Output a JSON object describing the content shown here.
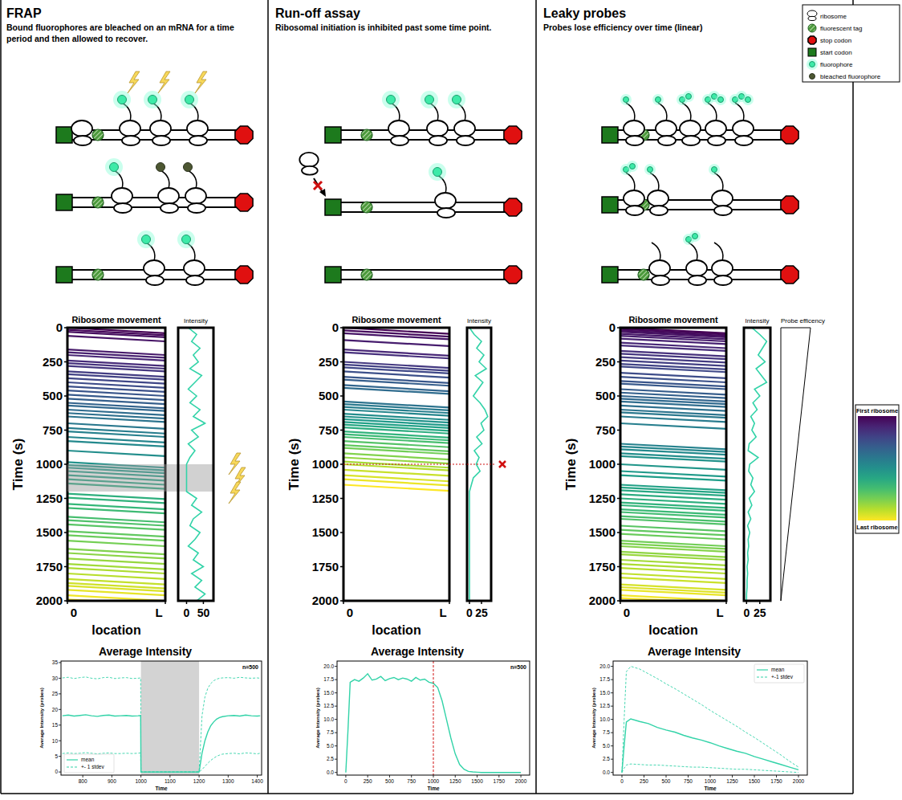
{
  "panels": [
    {
      "title": "FRAP",
      "subtitle": "Bound fluorophores are bleached on an mRNA for a time period and then allowed to recover."
    },
    {
      "title": "Run-off assay",
      "subtitle": "Ribosomal initiation is inhibited past some time point."
    },
    {
      "title": "Leaky probes",
      "subtitle": "Probes lose efficiency over time (linear)"
    }
  ],
  "legend": {
    "items": [
      "ribosome",
      "fluorescent tag",
      "stop codon",
      "start codon",
      "fluorophore",
      "bleached fluorophore"
    ]
  },
  "colorbar": {
    "top": "First ribosome",
    "bottom": "Last ribosome"
  },
  "chart_data": [
    {
      "type": "kymograph",
      "title": "Ribosome movement",
      "xlabel": "location",
      "ylabel": "Time (s)",
      "xlim": [
        0,
        1
      ],
      "xticks": [
        0,
        {
          "value": 1,
          "label": "L"
        }
      ],
      "ylim": [
        0,
        2000
      ],
      "yticks": [
        0,
        250,
        500,
        750,
        1000,
        1250,
        1500,
        1750,
        2000
      ],
      "starts": [
        0,
        15,
        30,
        60,
        160,
        180,
        200,
        240,
        260,
        280,
        320,
        340,
        370,
        400,
        430,
        460,
        490,
        520,
        550,
        570,
        600,
        625,
        650,
        700,
        735,
        760,
        800,
        830,
        900,
        985,
        1005,
        1025,
        1050,
        1080,
        1110,
        1140,
        1215,
        1245,
        1290,
        1320,
        1385,
        1410,
        1440,
        1490,
        1520,
        1560,
        1620,
        1650,
        1690,
        1730,
        1760,
        1800,
        1840,
        1870,
        1890,
        1920,
        1960,
        1990
      ],
      "ends": [
        40,
        55,
        70,
        100,
        200,
        220,
        240,
        280,
        300,
        320,
        360,
        380,
        410,
        440,
        470,
        500,
        530,
        560,
        590,
        610,
        640,
        665,
        690,
        740,
        775,
        800,
        840,
        870,
        940,
        1025,
        1045,
        1065,
        1090,
        1120,
        1150,
        1180,
        1255,
        1285,
        1330,
        1360,
        1425,
        1450,
        1480,
        1530,
        1560,
        1600,
        1660,
        1690,
        1730,
        1770,
        1800,
        1840,
        1880,
        1910,
        1930,
        1960,
        2000,
        2030
      ],
      "bleach": [
        1000,
        1200
      ]
    },
    {
      "type": "line",
      "title": "Intensity",
      "xlim": [
        -25,
        80
      ],
      "xticks": [
        0,
        50
      ],
      "ylim": [
        0,
        2000
      ],
      "tick_labels": "x",
      "color": "#32d3a8",
      "x": [
        0,
        50,
        100,
        150,
        200,
        250,
        300,
        350,
        400,
        450,
        500,
        550,
        600,
        650,
        700,
        750,
        800,
        850,
        900,
        950,
        1000,
        1050,
        1100,
        1150,
        1200,
        1250,
        1300,
        1350,
        1400,
        1450,
        1500,
        1550,
        1600,
        1650,
        1700,
        1750,
        1800,
        1850,
        1900,
        1950,
        2000
      ],
      "values": [
        5,
        30,
        15,
        40,
        20,
        35,
        10,
        45,
        25,
        5,
        30,
        10,
        40,
        20,
        55,
        15,
        35,
        5,
        25,
        10,
        0,
        0,
        0,
        0,
        0,
        30,
        15,
        45,
        20,
        10,
        40,
        25,
        5,
        35,
        20,
        50,
        15,
        45,
        25,
        55,
        30
      ]
    },
    {
      "type": "line",
      "title": "Average Intensity",
      "xlabel": "Time",
      "ylabel": "Average Intensity (probes)",
      "xlim": [
        725,
        1415
      ],
      "xticks": [
        800,
        900,
        1000,
        1100,
        1200,
        1300,
        1400
      ],
      "ylim": [
        -1,
        35.5
      ],
      "yticks": [
        0,
        5,
        10,
        15,
        20,
        25,
        30,
        35
      ],
      "annotation": "n=500",
      "legend": "lower left",
      "bleach": [
        1000,
        1200
      ],
      "x": [
        730,
        750,
        770,
        790,
        810,
        830,
        850,
        870,
        890,
        910,
        930,
        950,
        970,
        990,
        999,
        1000,
        1050,
        1100,
        1150,
        1200,
        1210,
        1220,
        1230,
        1240,
        1250,
        1260,
        1270,
        1280,
        1300,
        1320,
        1340,
        1360,
        1380,
        1400,
        1410
      ],
      "series": [
        {
          "name": "mean",
          "color": "#32d3a8",
          "line_style": "solid",
          "values": [
            18.0,
            18.2,
            17.9,
            18.1,
            18.3,
            18.0,
            17.8,
            18.1,
            18.2,
            17.9,
            18.0,
            18.1,
            17.9,
            18.0,
            18.1,
            0,
            0,
            0,
            0,
            0,
            6.0,
            10.0,
            12.8,
            14.8,
            16.0,
            16.9,
            17.4,
            17.7,
            18.0,
            18.1,
            17.9,
            18.2,
            18.0,
            17.9,
            18.0
          ]
        },
        {
          "name": "+- 1 stdev",
          "color": "#32d3a8",
          "line_style": "dashed",
          "values": [
            30.1,
            30.3,
            29.9,
            30.2,
            30.4,
            30.0,
            29.8,
            30.2,
            30.3,
            29.9,
            30.1,
            30.2,
            29.9,
            30.0,
            30.1,
            0,
            0,
            0,
            0,
            0,
            18.0,
            24.0,
            26.8,
            28.3,
            29.2,
            29.7,
            30.0,
            30.1,
            30.2,
            30.0,
            30.3,
            30.1,
            30.0,
            30.1,
            30.0
          ]
        },
        {
          "color": "#32d3a8",
          "line_style": "dashed",
          "values": [
            5.9,
            6.1,
            5.9,
            6.0,
            6.2,
            6.0,
            5.8,
            6.0,
            6.1,
            5.9,
            5.9,
            6.0,
            5.9,
            6.0,
            6.1,
            0,
            0,
            0,
            0,
            0,
            0.8,
            1.8,
            2.8,
            3.7,
            4.4,
            5.0,
            5.4,
            5.7,
            5.9,
            6.0,
            5.8,
            6.1,
            6.0,
            5.8,
            6.0
          ]
        }
      ]
    },
    {
      "type": "kymograph",
      "title": "Ribosome movement",
      "xlabel": "location",
      "ylabel": "Time (s)",
      "xlim": [
        0,
        1
      ],
      "xticks": [
        0,
        {
          "value": 1,
          "label": "L"
        }
      ],
      "ylim": [
        0,
        2000
      ],
      "yticks": [
        0,
        250,
        500,
        750,
        1000,
        1250,
        1500,
        1750,
        2000
      ],
      "inhibition_time": 1000,
      "starts": [
        0,
        20,
        40,
        90,
        160,
        180,
        250,
        270,
        290,
        320,
        360,
        380,
        420,
        440,
        540,
        560,
        580,
        600,
        630,
        650,
        670,
        690,
        710,
        730,
        760,
        780,
        800,
        830,
        860,
        880,
        920,
        950,
        980,
        1000,
        1040,
        1080,
        1110,
        1150
      ],
      "ends": [
        45,
        65,
        85,
        135,
        205,
        225,
        295,
        315,
        335,
        365,
        405,
        425,
        465,
        485,
        585,
        605,
        625,
        645,
        675,
        695,
        715,
        735,
        755,
        775,
        805,
        825,
        845,
        875,
        905,
        925,
        965,
        995,
        1025,
        1045,
        1085,
        1125,
        1155,
        1195
      ]
    },
    {
      "type": "line",
      "title": "Intensity",
      "xlim": [
        -5,
        45
      ],
      "xticks": [
        0,
        25
      ],
      "ylim": [
        0,
        2000
      ],
      "tick_labels": "x",
      "color": "#32d3a8",
      "inhibition_time": 1000,
      "x": [
        0,
        50,
        100,
        150,
        200,
        250,
        300,
        350,
        400,
        450,
        500,
        550,
        600,
        650,
        700,
        750,
        800,
        850,
        900,
        950,
        1000,
        1050,
        1100,
        1150,
        1200,
        1250,
        1300,
        1350,
        1400,
        1450,
        1500,
        1550,
        1600,
        1650,
        1700,
        1750,
        1800,
        1850,
        1900,
        1950,
        2000
      ],
      "values": [
        0,
        10,
        25,
        15,
        30,
        20,
        35,
        12,
        28,
        18,
        8,
        22,
        32,
        38,
        24,
        30,
        15,
        26,
        10,
        20,
        14,
        22,
        8,
        4,
        0,
        0,
        0,
        0,
        0,
        0,
        0,
        0,
        0,
        0,
        0,
        0,
        0,
        0,
        0,
        0,
        0
      ]
    },
    {
      "type": "line",
      "title": "Average Intensity",
      "xlabel": "Time",
      "ylabel": "Average Intensity (probes)",
      "xlim": [
        -100,
        2100
      ],
      "xticks": [
        0,
        250,
        500,
        750,
        1000,
        1250,
        1500,
        1750,
        2000
      ],
      "ylim": [
        -0.5,
        21
      ],
      "yticks": [
        {
          "value": 0,
          "label": "0.0"
        },
        {
          "value": 2.5,
          "label": "2.5"
        },
        {
          "value": 5,
          "label": "5.0"
        },
        {
          "value": 7.5,
          "label": "7.5"
        },
        {
          "value": 10,
          "label": "10.0"
        },
        {
          "value": 12.5,
          "label": "12.5"
        },
        {
          "value": 15,
          "label": "15.0"
        },
        {
          "value": 17.5,
          "label": "17.5"
        },
        {
          "value": 20,
          "label": "20.0"
        }
      ],
      "annotation": "n=500",
      "inhibition_time": 1000,
      "x": [
        0,
        25,
        50,
        100,
        150,
        200,
        250,
        300,
        350,
        400,
        450,
        500,
        550,
        600,
        650,
        700,
        750,
        800,
        850,
        900,
        950,
        1000,
        1050,
        1100,
        1150,
        1200,
        1250,
        1300,
        1350,
        1400,
        1450,
        1500,
        1550,
        1600,
        1650,
        1700,
        1750,
        1800,
        1850,
        1900,
        1950,
        2000
      ],
      "series": [
        {
          "color": "#32d3a8",
          "line_style": "solid",
          "values": [
            0,
            8,
            17,
            17.5,
            17.2,
            17.8,
            18.6,
            17.4,
            17.6,
            18.1,
            17.3,
            17.7,
            17.9,
            17.5,
            17.8,
            17.6,
            17.2,
            17.9,
            17.4,
            17.6,
            17.0,
            16.8,
            16.0,
            13.5,
            10.0,
            6.5,
            3.5,
            1.5,
            0.6,
            0.2,
            0.1,
            0.05,
            0,
            0,
            0,
            0,
            0,
            0,
            0,
            0,
            0,
            0
          ]
        }
      ]
    },
    {
      "type": "kymograph",
      "title": "Ribosome movement",
      "xlabel": "location",
      "ylabel": "Time (s)",
      "xlim": [
        0,
        1
      ],
      "xticks": [
        0,
        {
          "value": 1,
          "label": "L"
        }
      ],
      "ylim": [
        0,
        2000
      ],
      "yticks": [
        0,
        250,
        500,
        750,
        1000,
        1250,
        1500,
        1750,
        2000
      ],
      "starts": [
        0,
        10,
        20,
        30,
        45,
        60,
        80,
        110,
        130,
        170,
        190,
        215,
        240,
        265,
        285,
        330,
        360,
        390,
        410,
        450,
        475,
        500,
        520,
        540,
        570,
        600,
        620,
        650,
        700,
        850,
        870,
        890,
        920,
        940,
        1000,
        1050,
        1080,
        1150,
        1170,
        1190,
        1220,
        1250,
        1280,
        1300,
        1330,
        1350,
        1380,
        1400,
        1450,
        1480,
        1510,
        1560,
        1580,
        1600,
        1640,
        1660,
        1700,
        1730,
        1760,
        1800,
        1830,
        1880,
        1900,
        1920,
        1960,
        1980
      ],
      "ends": [
        40,
        50,
        60,
        70,
        85,
        100,
        120,
        150,
        170,
        210,
        230,
        255,
        280,
        305,
        325,
        370,
        400,
        430,
        450,
        490,
        515,
        540,
        560,
        580,
        610,
        640,
        660,
        690,
        740,
        890,
        910,
        930,
        960,
        980,
        1040,
        1090,
        1120,
        1190,
        1210,
        1230,
        1260,
        1290,
        1320,
        1340,
        1370,
        1390,
        1420,
        1440,
        1490,
        1520,
        1550,
        1600,
        1620,
        1640,
        1680,
        1700,
        1740,
        1770,
        1800,
        1840,
        1870,
        1920,
        1940,
        1960,
        2000,
        2020
      ]
    },
    {
      "type": "line",
      "title": "Intensity",
      "xlim": [
        -5,
        45
      ],
      "xticks": [
        0,
        25
      ],
      "ylim": [
        0,
        2000
      ],
      "tick_labels": "x",
      "color": "#32d3a8",
      "annotation": "Probe efficency",
      "x": [
        0,
        50,
        100,
        150,
        200,
        250,
        300,
        350,
        400,
        450,
        500,
        550,
        600,
        650,
        700,
        750,
        800,
        850,
        900,
        950,
        1000,
        1050,
        1100,
        1150,
        1200,
        1250,
        1300,
        1350,
        1400,
        1450,
        1500,
        1550,
        1600,
        1650,
        1700,
        1750,
        1800,
        1850,
        1900,
        1950,
        2000
      ],
      "values": [
        10,
        25,
        38,
        30,
        22,
        35,
        18,
        28,
        38,
        15,
        25,
        12,
        20,
        8,
        15,
        10,
        18,
        5,
        3,
        22,
        6,
        4,
        12,
        8,
        15,
        5,
        10,
        3,
        8,
        2,
        6,
        3,
        4,
        2,
        3,
        1,
        2,
        1,
        1,
        0,
        0
      ]
    },
    {
      "type": "line",
      "title": "Average Intensity",
      "xlabel": "Time",
      "ylabel": "Average Intensity (probes)",
      "xlim": [
        -100,
        2100
      ],
      "xticks": [
        0,
        250,
        500,
        750,
        1000,
        1250,
        1500,
        1750,
        2000
      ],
      "ylim": [
        -0.5,
        21
      ],
      "yticks": [
        {
          "value": 0,
          "label": "0.0"
        },
        {
          "value": 2.5,
          "label": "2.5"
        },
        {
          "value": 5,
          "label": "5.0"
        },
        {
          "value": 7.5,
          "label": "7.5"
        },
        {
          "value": 10,
          "label": "10.0"
        },
        {
          "value": 12.5,
          "label": "12.5"
        },
        {
          "value": 15,
          "label": "15.0"
        },
        {
          "value": 17.5,
          "label": "17.5"
        },
        {
          "value": 20,
          "label": "20.0"
        }
      ],
      "legend": "upper right",
      "x": [
        0,
        25,
        50,
        100,
        200,
        300,
        400,
        500,
        600,
        700,
        800,
        900,
        1000,
        1100,
        1200,
        1300,
        1400,
        1500,
        1600,
        1700,
        1800,
        1900,
        2000
      ],
      "series": [
        {
          "name": "mean",
          "color": "#32d3a8",
          "line_style": "solid",
          "values": [
            0,
            5.0,
            9.5,
            10.1,
            9.6,
            9.2,
            8.5,
            8.0,
            7.6,
            7.0,
            6.5,
            6.1,
            5.6,
            5.0,
            4.5,
            4.0,
            3.6,
            3.0,
            2.5,
            2.0,
            1.5,
            1.0,
            0.5
          ]
        },
        {
          "name": "+-1 stdev",
          "color": "#32d3a8",
          "line_style": "dashed",
          "values": [
            0,
            10,
            19,
            20,
            19.5,
            18.6,
            17.7,
            16.7,
            15.8,
            14.8,
            13.8,
            12.8,
            11.7,
            10.7,
            9.7,
            8.7,
            7.6,
            6.6,
            5.5,
            4.4,
            3.3,
            2.1,
            1.0
          ]
        },
        {
          "color": "#32d3a8",
          "line_style": "dashed",
          "values": [
            0,
            0.8,
            1.4,
            1.6,
            1.5,
            1.4,
            1.4,
            1.3,
            1.2,
            1.1,
            1.0,
            1.0,
            0.9,
            0.8,
            0.7,
            0.6,
            0.6,
            0.5,
            0.4,
            0.3,
            0.2,
            0.1,
            0.0
          ]
        }
      ]
    }
  ]
}
